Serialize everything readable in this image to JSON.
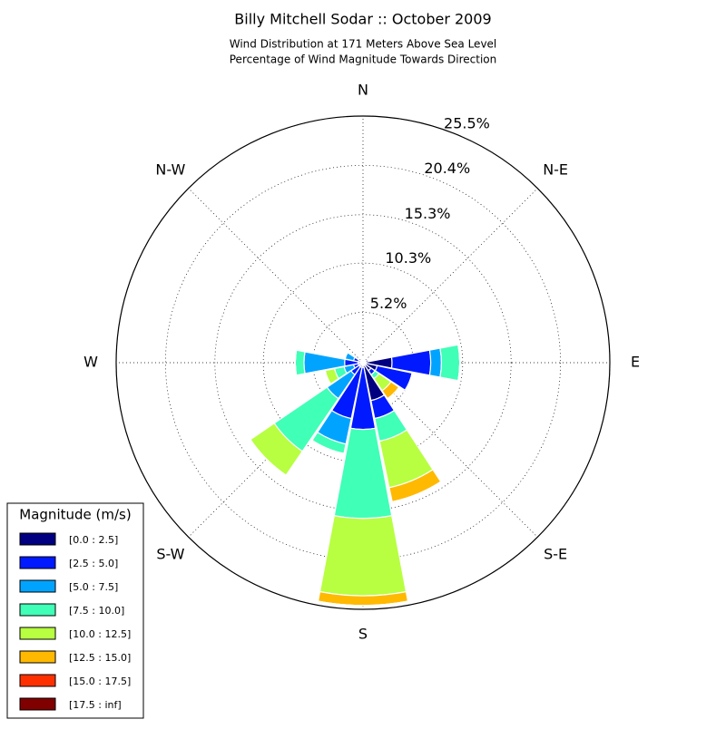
{
  "chart_data": {
    "type": "windrose",
    "title": "Billy Mitchell Sodar :: October 2009",
    "subtitle": [
      "Wind Distribution at 171 Meters Above Sea Level",
      "Percentage of Wind Magnitude Towards Direction"
    ],
    "categories": [
      "N",
      null,
      "N-E",
      null,
      "E",
      null,
      "S-E",
      null,
      "S",
      null,
      "S-W",
      null,
      "W",
      null,
      "N-W",
      null
    ],
    "ylim": [
      0,
      25.5
    ],
    "yticks": [
      {
        "value": 5.2,
        "label": "5.2%"
      },
      {
        "value": 10.3,
        "label": "10.3%"
      },
      {
        "value": 15.3,
        "label": "15.3%"
      },
      {
        "value": 20.4,
        "label": "20.4%"
      },
      {
        "value": 25.5,
        "label": "25.5%"
      }
    ],
    "grid": true,
    "legend_title": "Magnitude (m/s)",
    "legend_position": "lower-left",
    "series": [
      {
        "name": "[0.0 : 2.5]",
        "color": "#000080",
        "values": [
          0.4,
          0.3,
          0.3,
          0.6,
          3.0,
          1.5,
          1.0,
          4.0,
          0.5,
          0.5,
          0.5,
          0.5,
          0.5,
          0.5,
          0.3,
          0.3
        ]
      },
      {
        "name": "[2.5 : 5.0]",
        "color": "#0019ff",
        "values": [
          0,
          0,
          0,
          0,
          4.0,
          3.7,
          0.5,
          1.9,
          6.4,
          5.4,
          1.0,
          0.5,
          1.4,
          0.5,
          0,
          0
        ]
      },
      {
        "name": "[5.0 : 7.5]",
        "color": "#00a4ff",
        "values": [
          0,
          0,
          0,
          0,
          1.1,
          0,
          0,
          0,
          0,
          2.7,
          3.0,
          1.0,
          4.2,
          0.9,
          0,
          0
        ]
      },
      {
        "name": "[7.5 : 10.0]",
        "color": "#40ffb7",
        "values": [
          0,
          0,
          0,
          0,
          1.9,
          0,
          0.5,
          2.4,
          9.2,
          1.0,
          6.6,
          1.0,
          0.9,
          0,
          0,
          0
        ]
      },
      {
        "name": "[10.0 : 12.5]",
        "color": "#b7ff40",
        "values": [
          0,
          0,
          0,
          0,
          0,
          0,
          1.5,
          4.9,
          8.0,
          0,
          3.0,
          1.0,
          0,
          0,
          0,
          0
        ]
      },
      {
        "name": "[12.5 : 15.0]",
        "color": "#ffb900",
        "values": [
          0,
          0,
          0,
          0,
          0,
          0,
          1.0,
          1.5,
          1.0,
          0,
          0,
          0,
          0,
          0,
          0,
          0
        ]
      },
      {
        "name": "[15.0 : 17.5]",
        "color": "#ff3000",
        "values": [
          0,
          0,
          0,
          0,
          0,
          0,
          0,
          0,
          0,
          0,
          0,
          0,
          0,
          0,
          0,
          0
        ]
      },
      {
        "name": "[17.5 : inf]",
        "color": "#800000",
        "values": [
          0,
          0,
          0,
          0,
          0,
          0,
          0,
          0,
          0,
          0,
          0,
          0,
          0,
          0,
          0,
          0
        ]
      }
    ]
  }
}
